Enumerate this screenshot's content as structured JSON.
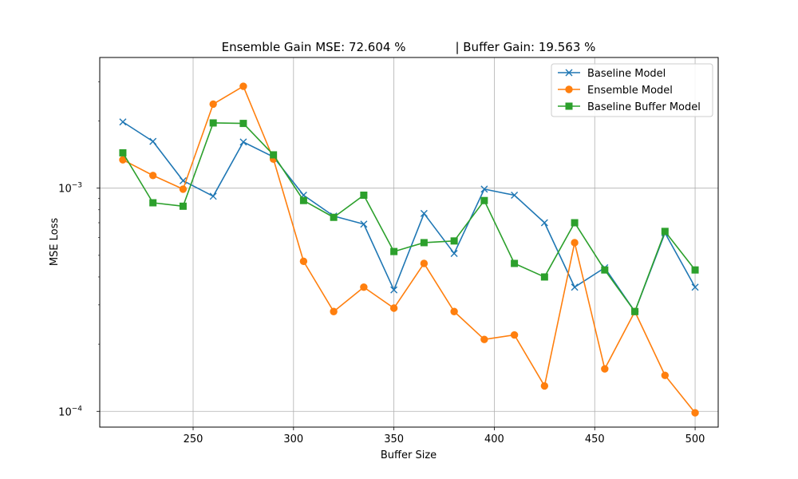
{
  "chart_data": {
    "type": "line",
    "title": "Ensemble Gain MSE: 72.604 %             | Buffer Gain: 19.563 %",
    "xlabel": "Buffer Size",
    "ylabel": "MSE Loss",
    "yscale": "log",
    "xlim": [
      203.5,
      511.5
    ],
    "ylim": [
      8.5e-05,
      0.00385
    ],
    "grid": true,
    "legend_position": "upper-right",
    "x_ticks": [
      250,
      300,
      350,
      400,
      450,
      500
    ],
    "x_tick_labels": [
      "250",
      "300",
      "350",
      "400",
      "450",
      "500"
    ],
    "y_major_ticks": [
      0.0001,
      0.001
    ],
    "y_tick_base": "10",
    "y_tick_exponents": [
      "−4",
      "−3"
    ],
    "y_minor_ticks": [
      0.0002,
      0.0003,
      0.0004,
      0.0005,
      0.0006,
      0.0007,
      0.0008,
      0.0009,
      0.002,
      0.003
    ],
    "x": [
      215,
      230,
      245,
      260,
      275,
      290,
      305,
      320,
      335,
      350,
      365,
      380,
      395,
      410,
      425,
      440,
      455,
      470,
      485,
      500
    ],
    "series": [
      {
        "name": "Baseline Model",
        "color": "#1f77b4",
        "marker": "x",
        "values": [
          0.00198,
          0.00162,
          0.00108,
          0.00092,
          0.00161,
          0.00138,
          0.00093,
          0.00075,
          0.00069,
          0.00035,
          0.00077,
          0.00051,
          0.00099,
          0.00093,
          0.0007,
          0.00036,
          0.00044,
          0.00028,
          0.00063,
          0.00036
        ]
      },
      {
        "name": "Ensemble Model",
        "color": "#ff7f0e",
        "marker": "circle",
        "values": [
          0.00134,
          0.00114,
          0.00099,
          0.00238,
          0.00286,
          0.00135,
          0.00047,
          0.00028,
          0.00036,
          0.00029,
          0.00046,
          0.00028,
          0.00021,
          0.00022,
          0.00013,
          0.00057,
          0.000155,
          0.00028,
          0.000145,
          9.85e-05
        ]
      },
      {
        "name": "Baseline Buffer Model",
        "color": "#2ca02c",
        "marker": "square",
        "values": [
          0.00144,
          0.00086,
          0.00083,
          0.00196,
          0.00195,
          0.00141,
          0.00088,
          0.00074,
          0.00093,
          0.00052,
          0.00057,
          0.00058,
          0.00088,
          0.00046,
          0.0004,
          0.0007,
          0.00043,
          0.00028,
          0.00064,
          0.00043
        ]
      }
    ]
  }
}
